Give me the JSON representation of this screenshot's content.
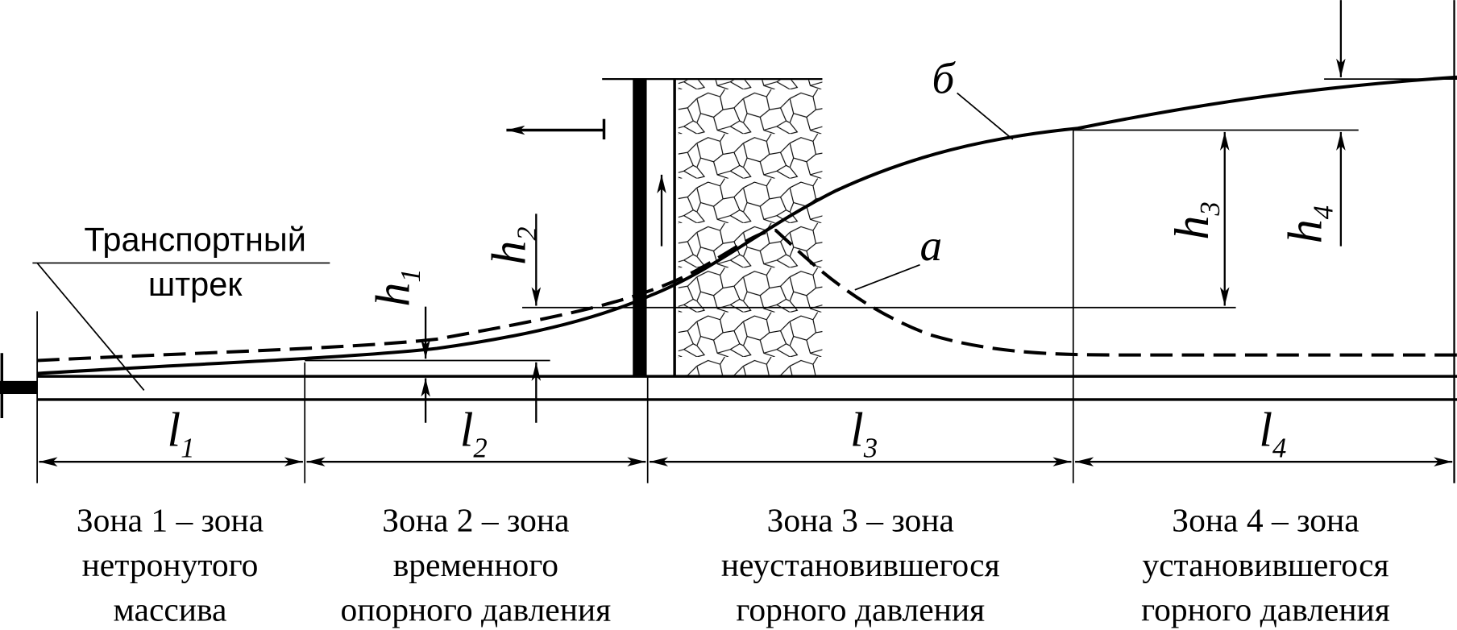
{
  "drift_label": [
    "Транспортный",
    "штрек"
  ],
  "curve_labels": {
    "a": "а",
    "b": "б"
  },
  "heights": [
    {
      "letter": "h",
      "index": "1"
    },
    {
      "letter": "h",
      "index": "2"
    },
    {
      "letter": "h",
      "index": "3"
    },
    {
      "letter": "h",
      "index": "4"
    }
  ],
  "lengths": [
    {
      "letter": "l",
      "index": "1"
    },
    {
      "letter": "l",
      "index": "2"
    },
    {
      "letter": "l",
      "index": "3"
    },
    {
      "letter": "l",
      "index": "4"
    }
  ],
  "zones": [
    [
      "Зона 1  – зона",
      "нетронутого",
      "массива"
    ],
    [
      "Зона 2 –  зона",
      "временного",
      "опорного давления"
    ],
    [
      "Зона 3 – зона",
      "неустановившегося",
      "горного давления"
    ],
    [
      "Зона 4 –  зона",
      "установившегося",
      "горного давления"
    ]
  ]
}
